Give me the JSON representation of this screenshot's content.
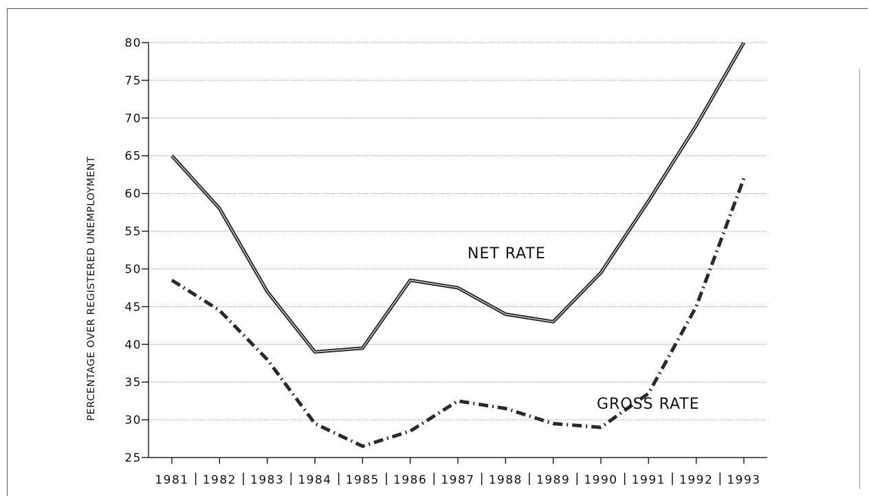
{
  "chart_data": {
    "type": "line",
    "title": "",
    "xlabel": "",
    "ylabel": "PERCENTAGE OVER REGISTERED UNEMPLOYMENT",
    "ylim": [
      25,
      80
    ],
    "yticks": [
      "25",
      "30",
      "35",
      "40",
      "45",
      "50",
      "55",
      "60",
      "65",
      "70",
      "75",
      "80"
    ],
    "grid": true,
    "x": [
      "1981",
      "1982",
      "1983",
      "1984",
      "1985",
      "1986",
      "1987",
      "1988",
      "1989",
      "1990",
      "1991",
      "1992",
      "1993"
    ],
    "series": [
      {
        "name": "NET RATE",
        "style": "solid",
        "values": [
          65,
          58,
          47,
          39,
          39.5,
          48.5,
          47.5,
          44,
          43,
          49.5,
          59,
          69,
          80
        ]
      },
      {
        "name": "GROSS RATE",
        "style": "dashed",
        "values": [
          48.5,
          44.5,
          38,
          29.5,
          26.5,
          28.5,
          32.5,
          31.5,
          29.5,
          29,
          33.5,
          45,
          62
        ]
      }
    ],
    "colors": {
      "line": "#2a2a2a",
      "grid": "#9a9a9a",
      "axis": "#222222"
    }
  }
}
